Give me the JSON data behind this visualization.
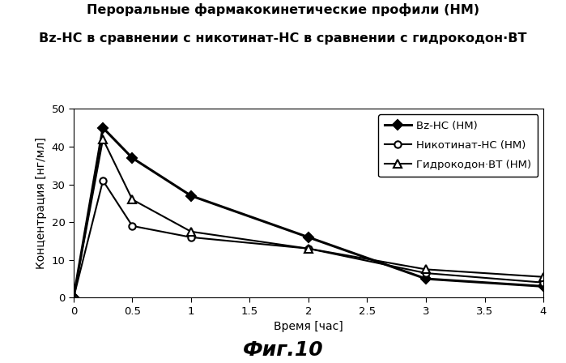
{
  "title_line1": "Пероральные фармакокинетические профили (НМ)",
  "title_line2": "Bz-НС в сравнении с никотинат-НС в сравнении с гидрокодон·ВТ",
  "xlabel": "Время [час]",
  "ylabel": "Концентрация [нг/мл]",
  "caption": "Фиг.10",
  "xlim": [
    0,
    4
  ],
  "ylim": [
    0,
    50
  ],
  "xticks": [
    0,
    0.5,
    1,
    1.5,
    2,
    2.5,
    3,
    3.5,
    4
  ],
  "xtick_labels": [
    "0",
    "0.5",
    "1",
    "1.5",
    "2",
    "2.5",
    "3",
    "3.5",
    "4"
  ],
  "yticks": [
    0,
    10,
    20,
    30,
    40,
    50
  ],
  "series": [
    {
      "label": "Bz-НС (НМ)",
      "x": [
        0,
        0.25,
        0.5,
        1,
        2,
        3,
        4
      ],
      "y": [
        0,
        45,
        37,
        27,
        16,
        5,
        3
      ],
      "color": "#000000",
      "linestyle": "-",
      "linewidth": 2.2,
      "marker": "D",
      "markersize": 6,
      "markerfacecolor": "#000000",
      "markeredgecolor": "#000000"
    },
    {
      "label": "Никотинат-НС (НМ)",
      "x": [
        0,
        0.25,
        0.5,
        1,
        2,
        3,
        4
      ],
      "y": [
        0,
        31,
        19,
        16,
        13,
        6.5,
        4
      ],
      "color": "#000000",
      "linestyle": "-",
      "linewidth": 1.5,
      "marker": "o",
      "markersize": 6,
      "markerfacecolor": "#ffffff",
      "markeredgecolor": "#000000"
    },
    {
      "label": "Гидрокодон·ВТ (НМ)",
      "x": [
        0,
        0.25,
        0.5,
        1,
        2,
        3,
        4
      ],
      "y": [
        0,
        42,
        26,
        17.5,
        13,
        7.5,
        5.5
      ],
      "color": "#000000",
      "linestyle": "-",
      "linewidth": 1.5,
      "marker": "^",
      "markersize": 7,
      "markerfacecolor": "#ffffff",
      "markeredgecolor": "#000000"
    }
  ],
  "background_color": "#ffffff",
  "title_fontsize": 11.5,
  "label_fontsize": 10,
  "tick_fontsize": 9.5,
  "legend_fontsize": 9.5,
  "caption_fontsize": 18
}
